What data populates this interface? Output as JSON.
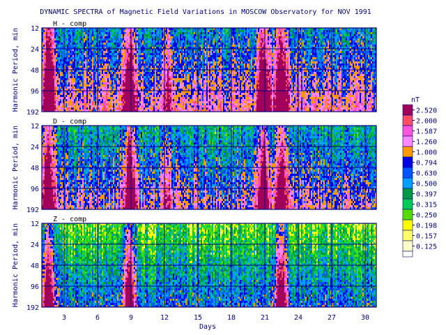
{
  "chart_data": {
    "type": "heatmap",
    "title": "DYNAMIC SPECTRA of Magnetic Field Variations in MOSCOW Observatory for NOV 1991",
    "xlabel": "Days",
    "ylabel": "Harmonic Period, min",
    "xlim": [
      1,
      31
    ],
    "x_ticks": [
      3,
      6,
      9,
      12,
      15,
      18,
      21,
      24,
      27,
      30
    ],
    "y_ticks": [
      12,
      24,
      48,
      96,
      192
    ],
    "y_scale": "log2",
    "grid": true,
    "panels": [
      {
        "name": "H - comp",
        "storm_days": [
          1.6,
          8.9,
          20.9,
          22.5,
          12.3
        ],
        "base_level": 6
      },
      {
        "name": "D - comp",
        "storm_days": [
          1.6,
          8.9,
          20.9,
          22.5,
          12.3
        ],
        "base_level": 5
      },
      {
        "name": "Z - comp",
        "storm_days": [
          1.6,
          8.9,
          22.5
        ],
        "base_level": 3
      }
    ],
    "colorbar": {
      "unit": "nT",
      "levels": [
        "2.520",
        "2.000",
        "1.587",
        "1.260",
        "1.000",
        "0.794",
        "0.630",
        "0.500",
        "0.397",
        "0.315",
        "0.250",
        "0.198",
        "0.157",
        "0.125"
      ],
      "colors": [
        "#a0005a",
        "#ff4d66",
        "#ff55dd",
        "#ff88ff",
        "#ff9900",
        "#0000e0",
        "#0055ff",
        "#00a0ff",
        "#009944",
        "#00cc55",
        "#55dd00",
        "#ffff00",
        "#ffff66",
        "#ffffc8"
      ]
    },
    "plot_color": "#000080",
    "background": "#ffffff"
  }
}
